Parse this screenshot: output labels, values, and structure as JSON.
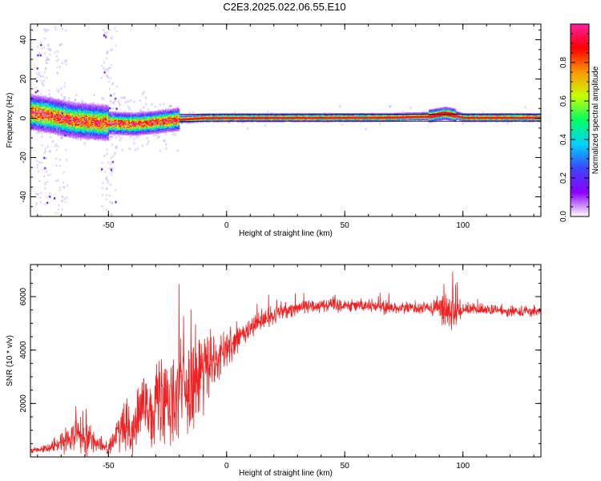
{
  "title": "C2E3.2025.022.06.55.E10",
  "chart_data": [
    {
      "type": "heatmap",
      "xlabel": "Height of straight line (km)",
      "ylabel": "Frequency (Hz)",
      "xlim": [
        -83,
        133
      ],
      "ylim": [
        -50,
        48
      ],
      "xticks": [
        -50,
        0,
        50,
        100
      ],
      "yticks": [
        -40,
        -20,
        0,
        20,
        40
      ],
      "colorbar": {
        "label": "Normalized spectral amplitude",
        "range": [
          0,
          1
        ],
        "ticks": [
          "0.0",
          "0.2",
          "0.4",
          "0.6",
          "0.8"
        ],
        "colors": [
          "#ffffff",
          "#8b00ff",
          "#3c46ff",
          "#00d2ff",
          "#00ff64",
          "#c8ff00",
          "#ff9600",
          "#ff0000",
          "#ff1ea0"
        ]
      },
      "ridge": {
        "x": [
          -83,
          -75,
          -65,
          -55,
          -48,
          -40,
          -30,
          -20,
          -10,
          0,
          20,
          50,
          70,
          85,
          92,
          95,
          100,
          133
        ],
        "y": [
          3,
          1.5,
          -1,
          -2,
          -2.5,
          -3,
          -2,
          -0.5,
          0.2,
          0.3,
          0.3,
          0.4,
          0.5,
          1.0,
          2.5,
          2.0,
          0.4,
          0.4
        ]
      }
    },
    {
      "type": "line",
      "xlabel": "Height of straight line (km)",
      "ylabel": "SNR (10 * v/v)",
      "xlim": [
        -83,
        133
      ],
      "ylim": [
        0,
        7200
      ],
      "xticks": [
        -50,
        0,
        50,
        100
      ],
      "yticks": [
        2000,
        4000,
        6000
      ],
      "series": [
        {
          "color": "#ee2222",
          "envelope_x": [
            -83,
            -75,
            -70,
            -65,
            -60,
            -57,
            -55,
            -50,
            -45,
            -40,
            -35,
            -30,
            -25,
            -20,
            -15,
            -10,
            -5,
            0,
            5,
            10,
            15,
            20,
            25,
            30,
            35,
            40,
            50,
            60,
            70,
            80,
            88,
            92,
            95,
            97,
            100,
            110,
            120,
            133
          ],
          "envelope_mean": [
            200,
            350,
            500,
            900,
            900,
            700,
            500,
            300,
            1000,
            1100,
            1800,
            2000,
            2300,
            2500,
            2800,
            3200,
            3500,
            4000,
            4400,
            4800,
            5100,
            5300,
            5500,
            5600,
            5650,
            5700,
            5700,
            5650,
            5600,
            5550,
            5550,
            5600,
            5400,
            5500,
            5500,
            5500,
            5450,
            5450
          ],
          "envelope_spread": [
            150,
            200,
            400,
            800,
            1200,
            700,
            300,
            300,
            900,
            1200,
            1500,
            2000,
            2500,
            2800,
            2200,
            1800,
            1300,
            900,
            700,
            600,
            500,
            450,
            400,
            350,
            350,
            320,
            300,
            300,
            300,
            300,
            400,
            900,
            1100,
            800,
            300,
            250,
            250,
            250
          ]
        }
      ]
    }
  ]
}
